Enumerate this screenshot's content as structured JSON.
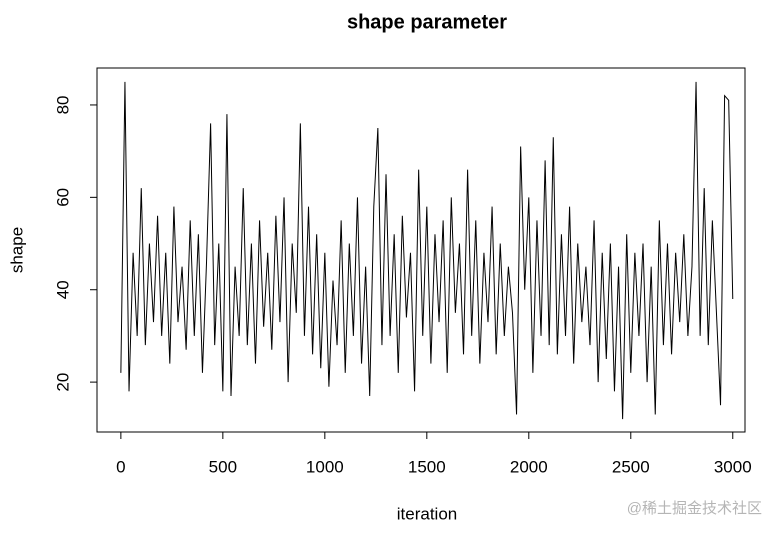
{
  "chart_data": {
    "type": "line",
    "title": "shape parameter",
    "x_label": "iteration",
    "y_label": "shape",
    "watermark": "@稀土掘金技术社区",
    "x": [
      0,
      20,
      40,
      60,
      80,
      100,
      120,
      140,
      160,
      180,
      200,
      220,
      240,
      260,
      280,
      300,
      320,
      340,
      360,
      380,
      400,
      420,
      440,
      460,
      480,
      500,
      520,
      540,
      560,
      580,
      600,
      620,
      640,
      660,
      680,
      700,
      720,
      740,
      760,
      780,
      800,
      820,
      840,
      860,
      880,
      900,
      920,
      940,
      960,
      980,
      1000,
      1020,
      1040,
      1060,
      1080,
      1100,
      1120,
      1140,
      1160,
      1180,
      1200,
      1220,
      1240,
      1260,
      1280,
      1300,
      1320,
      1340,
      1360,
      1380,
      1400,
      1420,
      1440,
      1460,
      1480,
      1500,
      1520,
      1540,
      1560,
      1580,
      1600,
      1620,
      1640,
      1660,
      1680,
      1700,
      1720,
      1740,
      1760,
      1780,
      1800,
      1820,
      1840,
      1860,
      1880,
      1900,
      1920,
      1940,
      1960,
      1980,
      2000,
      2020,
      2040,
      2060,
      2080,
      2100,
      2120,
      2140,
      2160,
      2180,
      2200,
      2220,
      2240,
      2260,
      2280,
      2300,
      2320,
      2340,
      2360,
      2380,
      2400,
      2420,
      2440,
      2460,
      2480,
      2500,
      2520,
      2540,
      2560,
      2580,
      2600,
      2620,
      2640,
      2660,
      2680,
      2700,
      2720,
      2740,
      2760,
      2780,
      2800,
      2820,
      2840,
      2860,
      2880,
      2900,
      2920,
      2940,
      2960,
      2980,
      3000
    ],
    "values": [
      22,
      85,
      18,
      48,
      30,
      62,
      28,
      50,
      33,
      56,
      30,
      48,
      24,
      58,
      33,
      45,
      27,
      55,
      30,
      52,
      22,
      46,
      76,
      28,
      50,
      18,
      78,
      17,
      45,
      30,
      62,
      28,
      50,
      24,
      55,
      32,
      48,
      27,
      56,
      33,
      60,
      20,
      50,
      35,
      76,
      30,
      58,
      26,
      52,
      23,
      48,
      19,
      42,
      28,
      55,
      22,
      50,
      30,
      60,
      24,
      45,
      17,
      58,
      75,
      28,
      65,
      30,
      52,
      22,
      56,
      34,
      48,
      18,
      66,
      30,
      58,
      24,
      52,
      33,
      55,
      22,
      60,
      35,
      50,
      26,
      66,
      30,
      55,
      24,
      48,
      33,
      58,
      26,
      50,
      30,
      45,
      35,
      13,
      71,
      40,
      60,
      22,
      55,
      30,
      68,
      28,
      73,
      26,
      52,
      30,
      58,
      24,
      50,
      33,
      45,
      28,
      55,
      20,
      48,
      25,
      50,
      18,
      45,
      12,
      52,
      22,
      48,
      30,
      50,
      20,
      45,
      13,
      55,
      28,
      50,
      26,
      48,
      33,
      52,
      30,
      45,
      85,
      30,
      62,
      28,
      55,
      35,
      15,
      82,
      81,
      38
    ],
    "color": "#000000",
    "xlim": [
      -117,
      3060
    ],
    "ylim": [
      9.2,
      88
    ],
    "xticks": [
      0,
      500,
      1000,
      1500,
      2000,
      2500,
      3000
    ],
    "yticks": [
      20,
      40,
      60,
      80
    ]
  }
}
